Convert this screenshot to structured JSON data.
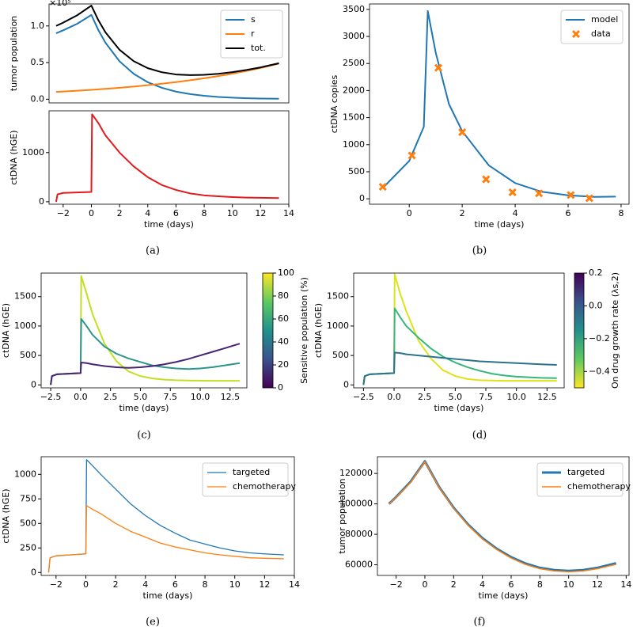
{
  "chart_data": [
    {
      "type": "line",
      "ylabel": "tumor population",
      "offset_label": "×10⁵",
      "legend": "upper right",
      "x": [
        -2.5,
        -2,
        -1,
        0,
        0.5,
        1,
        2,
        3,
        4,
        5,
        6,
        7,
        8,
        9,
        10,
        11,
        12,
        13.3
      ],
      "xlim": [
        -3,
        14
      ],
      "ylim": [
        -0.05,
        1.3
      ],
      "yticks": [
        {
          "value": 0,
          "label": "0.0"
        },
        0.5,
        {
          "value": 1,
          "label": "1.0"
        }
      ],
      "series": [
        {
          "name": "s",
          "color": "#1f77b4",
          "values": [
            0.9,
            0.94,
            1.03,
            1.15,
            0.942,
            0.771,
            0.517,
            0.347,
            0.232,
            0.156,
            0.104,
            0.07,
            0.047,
            0.031,
            0.021,
            0.014,
            0.009,
            0.006
          ]
        },
        {
          "name": "r",
          "color": "#ff7f0e",
          "values": [
            0.1,
            0.105,
            0.116,
            0.128,
            0.135,
            0.142,
            0.157,
            0.173,
            0.192,
            0.212,
            0.234,
            0.259,
            0.286,
            0.316,
            0.349,
            0.386,
            0.426,
            0.485
          ]
        },
        {
          "name": "tot.",
          "color": "#000000",
          "values": [
            1.0,
            1.045,
            1.146,
            1.278,
            1.077,
            0.913,
            0.674,
            0.52,
            0.424,
            0.368,
            0.338,
            0.329,
            0.333,
            0.347,
            0.37,
            0.4,
            0.435,
            0.491
          ]
        }
      ]
    },
    {
      "type": "line",
      "ylabel": "ctDNA (hGE)",
      "xlabel": "time (days)",
      "caption": "(a)",
      "x": [
        -2.5,
        -2.4,
        -2,
        -1,
        0,
        0.05,
        0.5,
        1,
        2,
        3,
        4,
        5,
        6,
        7,
        8,
        9,
        10,
        11,
        12,
        13.3
      ],
      "xlim": [
        -3,
        14
      ],
      "ylim": [
        -50,
        1850
      ],
      "xticks": [
        {
          "value": -2,
          "label": "−2"
        },
        0,
        2,
        4,
        6,
        8,
        10,
        12,
        14
      ],
      "yticks": [
        0,
        1000
      ],
      "series": [
        {
          "color": "#e31a1c",
          "values": [
            0,
            150,
            180,
            190,
            200,
            1780,
            1600,
            1350,
            1000,
            720,
            500,
            340,
            240,
            170,
            130,
            110,
            95,
            85,
            80,
            75
          ]
        }
      ]
    },
    {
      "type": "line",
      "ylabel": "ctDNA copies",
      "xlabel": "time (days)",
      "caption": "(b)",
      "legend": "upper right",
      "xlim": [
        -1.5,
        8.3
      ],
      "ylim": [
        -100,
        3600
      ],
      "xticks": [
        0,
        2,
        4,
        6,
        8
      ],
      "yticks": [
        0,
        500,
        1000,
        1500,
        2000,
        2500,
        3000,
        3500
      ],
      "series": [
        {
          "name": "model",
          "color": "#1f77b4",
          "style": "line",
          "x": [
            -1,
            0,
            0.55,
            0.7,
            1,
            1.5,
            2,
            3,
            4,
            5,
            6,
            7,
            7.8
          ],
          "values": [
            200,
            700,
            1330,
            3470,
            2700,
            1750,
            1250,
            620,
            290,
            130,
            65,
            35,
            40
          ]
        },
        {
          "name": "data",
          "color": "#ff7f0e",
          "style": "cross",
          "x": [
            -1,
            0.1,
            1.1,
            2,
            2.9,
            3.9,
            4.9,
            6.1,
            6.8
          ],
          "values": [
            220,
            800,
            2420,
            1230,
            360,
            120,
            100,
            70,
            10
          ]
        }
      ]
    },
    {
      "type": "line",
      "ylabel": "ctDNA (hGE)",
      "xlabel": "time (days)",
      "caption": "(c)",
      "x": [
        -2.5,
        -2.4,
        -2,
        -1,
        0,
        0.05,
        0.5,
        1,
        2,
        3,
        4,
        5,
        6,
        7,
        8,
        9,
        10,
        11,
        12,
        13.3
      ],
      "xlim": [
        -3.3,
        13.9
      ],
      "ylim": [
        -50,
        1900
      ],
      "xticks": [
        {
          "value": -2.5,
          "label": "−2.5"
        },
        {
          "value": 0,
          "label": "0.0"
        },
        2.5,
        {
          "value": 5,
          "label": "5.0"
        },
        7.5,
        {
          "value": 10,
          "label": "10.0"
        },
        12.5
      ],
      "yticks": [
        0,
        500,
        1000,
        1500
      ],
      "series": [
        {
          "color": "#c2df23",
          "values": [
            0,
            150,
            180,
            190,
            200,
            1850,
            1550,
            1200,
            700,
            400,
            230,
            150,
            110,
            90,
            80,
            75,
            72,
            70,
            70,
            70
          ]
        },
        {
          "color": "#2a968b",
          "values": [
            0,
            150,
            180,
            190,
            200,
            1120,
            1000,
            850,
            650,
            530,
            450,
            390,
            330,
            300,
            280,
            270,
            280,
            300,
            330,
            370
          ]
        },
        {
          "color": "#482475",
          "values": [
            0,
            150,
            180,
            190,
            200,
            380,
            370,
            350,
            320,
            300,
            290,
            300,
            320,
            350,
            390,
            440,
            500,
            560,
            620,
            700
          ]
        }
      ],
      "colorbar": {
        "label": "Sensitive population (%)",
        "colors": [
          "#440154",
          "#3b528b",
          "#21918c",
          "#5ec962",
          "#fde725"
        ],
        "ylim": [
          0,
          100
        ],
        "yticks": [
          0,
          20,
          40,
          60,
          80,
          100
        ]
      }
    },
    {
      "type": "line",
      "ylabel": "ctDNA (hGE)",
      "xlabel": "time (days)",
      "caption": "(d)",
      "x": [
        -2.5,
        -2.4,
        -2,
        -1,
        0,
        0.05,
        0.5,
        1,
        2,
        3,
        4,
        5,
        6,
        7,
        8,
        9,
        10,
        11,
        12,
        13.3
      ],
      "xlim": [
        -3.3,
        13.9
      ],
      "ylim": [
        -50,
        1900
      ],
      "xticks": [
        {
          "value": -2.5,
          "label": "−2.5"
        },
        {
          "value": 0,
          "label": "0.0"
        },
        2.5,
        {
          "value": 5,
          "label": "5.0"
        },
        7.5,
        {
          "value": 10,
          "label": "10.0"
        },
        12.5
      ],
      "yticks": [
        0,
        500,
        1000,
        1500
      ],
      "series": [
        {
          "color": "#dde318",
          "values": [
            0,
            150,
            180,
            190,
            200,
            1880,
            1550,
            1250,
            750,
            450,
            250,
            150,
            100,
            80,
            75,
            70,
            70,
            70,
            70,
            70
          ]
        },
        {
          "color": "#35b779",
          "values": [
            0,
            150,
            180,
            190,
            200,
            1300,
            1150,
            1000,
            800,
            620,
            480,
            380,
            300,
            240,
            190,
            160,
            140,
            130,
            120,
            115
          ]
        },
        {
          "color": "#2c728e",
          "values": [
            0,
            150,
            180,
            190,
            200,
            550,
            540,
            520,
            500,
            480,
            460,
            440,
            420,
            400,
            390,
            380,
            370,
            360,
            350,
            340
          ]
        }
      ],
      "colorbar": {
        "label": "On drug growth rate (λs,2)",
        "colors": [
          "#fde725",
          "#5ec962",
          "#21918c",
          "#3b528b",
          "#440154"
        ],
        "ylim": [
          -0.5,
          0.2
        ],
        "yticks": [
          {
            "value": -0.4,
            "label": "−0.4"
          },
          {
            "value": -0.2,
            "label": "−0.2"
          },
          {
            "value": 0,
            "label": "0.0"
          },
          0.2
        ]
      }
    },
    {
      "type": "line",
      "ylabel": "ctDNA (hGE)",
      "xlabel": "time (days)",
      "caption": "(e)",
      "legend": "upper right",
      "x": [
        -2.5,
        -2.4,
        -2,
        -1,
        0,
        0.05,
        0.5,
        1,
        2,
        3,
        4,
        5,
        6,
        7,
        8,
        9,
        10,
        11,
        12,
        13.3
      ],
      "xlim": [
        -3,
        14
      ],
      "ylim": [
        -30,
        1180
      ],
      "xticks": [
        {
          "value": -2,
          "label": "−2"
        },
        0,
        2,
        4,
        6,
        8,
        10,
        12,
        14
      ],
      "yticks": [
        0,
        250,
        500,
        750,
        1000
      ],
      "series": [
        {
          "name": "targeted",
          "color": "#1f77b4",
          "line_width": 1.3,
          "values": [
            0,
            150,
            170,
            180,
            190,
            1150,
            1080,
            1000,
            850,
            700,
            580,
            480,
            400,
            330,
            290,
            250,
            220,
            200,
            190,
            180
          ]
        },
        {
          "name": "chemotherapy",
          "color": "#ff7f0e",
          "line_width": 1.3,
          "values": [
            0,
            150,
            170,
            180,
            190,
            680,
            640,
            600,
            500,
            420,
            360,
            300,
            260,
            230,
            200,
            180,
            165,
            150,
            145,
            140
          ]
        }
      ]
    },
    {
      "type": "line",
      "ylabel": "tumor population",
      "xlabel": "time (days)",
      "caption": "(f)",
      "legend": "upper right",
      "x": [
        -2.5,
        -2,
        -1,
        0,
        1,
        2,
        3,
        4,
        5,
        6,
        7,
        8,
        9,
        10,
        11,
        12,
        13.3
      ],
      "xlim": [
        -3.3,
        14.2
      ],
      "ylim": [
        53000,
        131000
      ],
      "xticks": [
        {
          "value": -2,
          "label": "−2"
        },
        0,
        2,
        4,
        6,
        8,
        10,
        12,
        14
      ],
      "yticks": [
        60000,
        80000,
        100000,
        120000
      ],
      "series": [
        {
          "name": "targeted",
          "color": "#1f77b4",
          "line_width": 3,
          "values": [
            100000,
            104500,
            114500,
            128000,
            111000,
            97500,
            86500,
            77500,
            70500,
            65000,
            60800,
            58000,
            56500,
            56000,
            56500,
            58000,
            61000
          ]
        },
        {
          "name": "chemotherapy",
          "color": "#ff7f0e",
          "line_width": 1.5,
          "values": [
            99900,
            104300,
            114000,
            127800,
            110700,
            97100,
            86000,
            77000,
            70000,
            64400,
            60200,
            57400,
            55900,
            55400,
            55900,
            57400,
            60300
          ]
        }
      ]
    }
  ]
}
